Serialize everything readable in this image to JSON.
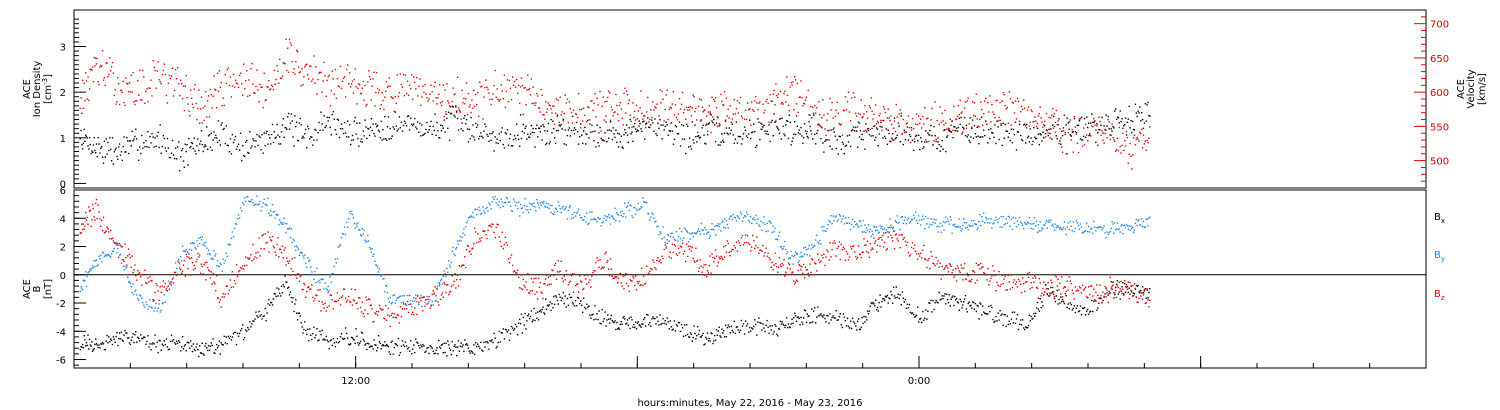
{
  "chart_data": [
    {
      "type": "scatter",
      "panel": "top",
      "ylabel_lines": [
        "ACE",
        "Ion Density"
      ],
      "ylabel_unit": "[cm",
      "ylabel_unit_sup": "-3",
      "ylabel_unit_end": "]",
      "ylim": [
        -0.1,
        3.8
      ],
      "yticks": [
        0,
        1,
        2,
        3
      ],
      "y2label_lines": [
        "ACE",
        "Velocity"
      ],
      "y2label_unit": "[km/s]",
      "y2lim": [
        460,
        720
      ],
      "y2ticks": [
        500,
        550,
        600,
        650,
        700
      ],
      "xlim": [
        0,
        48
      ],
      "series": [
        {
          "color": "#000000",
          "x": [
            0.2,
            0.8,
            1.5,
            2.2,
            3.0,
            3.8,
            4.5,
            5.2,
            6.0,
            6.8,
            7.5,
            8.2,
            9.0,
            9.8,
            10.5,
            11.2,
            12.0,
            12.8,
            13.5,
            14.2,
            15.0,
            15.8,
            16.5,
            17.2,
            18.0,
            18.8,
            19.5,
            20.2,
            21.0,
            21.8,
            22.5,
            23.2,
            24.0,
            24.8,
            25.5,
            26.2,
            27.0,
            27.8,
            28.5,
            29.2,
            30.0,
            30.8,
            31.5,
            32.2,
            33.0,
            33.8,
            34.5,
            35.2,
            36.0,
            36.8,
            37.5,
            38.2
          ],
          "y": [
            1.0,
            0.8,
            0.7,
            0.9,
            1.0,
            0.6,
            0.9,
            1.1,
            0.8,
            1.0,
            1.3,
            1.0,
            1.4,
            1.1,
            1.2,
            1.3,
            1.3,
            1.2,
            1.4,
            1.2,
            1.0,
            1.2,
            1.1,
            1.2,
            1.2,
            1.1,
            1.1,
            1.2,
            1.3,
            1.0,
            1.2,
            1.1,
            1.1,
            1.3,
            1.2,
            1.2,
            0.9,
            1.1,
            1.1,
            1.2,
            1.0,
            1.0,
            1.2,
            1.1,
            1.2,
            1.0,
            1.1,
            1.3,
            1.2,
            1.3,
            1.4,
            1.6
          ]
        },
        {
          "color": "#e00000",
          "x": [
            0.2,
            0.8,
            1.5,
            2.2,
            3.0,
            3.8,
            4.5,
            5.2,
            6.0,
            6.8,
            7.5,
            8.2,
            9.0,
            9.8,
            10.5,
            11.2,
            12.0,
            12.8,
            13.5,
            14.2,
            15.0,
            15.8,
            16.5,
            17.2,
            18.0,
            18.8,
            19.5,
            20.2,
            21.0,
            21.8,
            22.5,
            23.2,
            24.0,
            24.8,
            25.5,
            26.2,
            27.0,
            27.8,
            28.5,
            29.2,
            30.0,
            30.8,
            31.5,
            32.2,
            33.0,
            33.8,
            34.5,
            35.2,
            36.0,
            36.8,
            37.5,
            38.2
          ],
          "y": [
            590,
            640,
            610,
            600,
            625,
            605,
            575,
            610,
            620,
            595,
            660,
            630,
            612,
            620,
            606,
            600,
            602,
            590,
            590,
            586,
            602,
            598,
            588,
            578,
            568,
            578,
            575,
            580,
            588,
            578,
            568,
            580,
            572,
            578,
            595,
            570,
            560,
            578,
            568,
            560,
            555,
            552,
            560,
            568,
            585,
            560,
            556,
            540,
            545,
            535,
            520,
            540
          ]
        }
      ]
    },
    {
      "type": "scatter",
      "panel": "bottom",
      "ylabel_lines": [
        "ACE",
        "B"
      ],
      "ylabel_unit": "[nT]",
      "ylim": [
        -6.6,
        6.0
      ],
      "yticks": [
        -6,
        -4,
        -2,
        0,
        2,
        4,
        6
      ],
      "xlim": [
        0,
        48
      ],
      "xticks": [
        10,
        20,
        30,
        40
      ],
      "xticklabels": [
        "12:00",
        "",
        "0:00",
        ""
      ],
      "xlabel": "hours:minutes, May 22, 2016 - May 23, 2016",
      "series": [
        {
          "name": "B",
          "sub": "x",
          "color": "#000000",
          "x": [
            0.2,
            0.8,
            1.5,
            2.2,
            3.0,
            3.8,
            4.5,
            5.2,
            6.0,
            6.8,
            7.5,
            8.2,
            9.0,
            9.8,
            10.5,
            11.2,
            12.0,
            12.8,
            13.5,
            14.2,
            15.0,
            15.8,
            16.5,
            17.2,
            18.0,
            18.8,
            19.5,
            20.2,
            21.0,
            21.8,
            22.5,
            23.2,
            24.0,
            24.8,
            25.5,
            26.2,
            27.0,
            27.8,
            28.5,
            29.2,
            30.0,
            30.8,
            31.5,
            32.2,
            33.0,
            33.8,
            34.5,
            35.2,
            36.0,
            36.8,
            37.5,
            38.2
          ],
          "y": [
            -4.8,
            -5.0,
            -4.5,
            -4.2,
            -5.0,
            -4.8,
            -5.2,
            -5.0,
            -4.0,
            -2.5,
            -0.5,
            -4.0,
            -4.6,
            -4.3,
            -4.8,
            -5.0,
            -5.1,
            -5.2,
            -5.0,
            -5.3,
            -4.5,
            -3.5,
            -2.5,
            -1.5,
            -2.0,
            -3.0,
            -3.5,
            -3.4,
            -3.3,
            -4.0,
            -4.5,
            -3.8,
            -3.5,
            -3.8,
            -3.2,
            -2.8,
            -3.0,
            -3.5,
            -2.0,
            -1.2,
            -3.0,
            -1.5,
            -2.0,
            -2.5,
            -3.0,
            -3.5,
            -1.2,
            -2.0,
            -2.5,
            -1.0,
            -1.0,
            -1.5
          ]
        },
        {
          "name": "B",
          "sub": "y",
          "color": "#1e88e5",
          "x": [
            0.2,
            0.8,
            1.5,
            2.2,
            3.0,
            3.8,
            4.5,
            5.2,
            6.0,
            6.8,
            7.5,
            8.2,
            9.0,
            9.8,
            10.5,
            11.2,
            12.0,
            12.8,
            13.5,
            14.2,
            15.0,
            15.8,
            16.5,
            17.2,
            18.0,
            18.8,
            19.5,
            20.2,
            21.0,
            21.8,
            22.5,
            23.2,
            24.0,
            24.8,
            25.5,
            26.2,
            27.0,
            27.8,
            28.5,
            29.2,
            30.0,
            30.8,
            31.5,
            32.2,
            33.0,
            33.8,
            34.5,
            35.2,
            36.0,
            36.8,
            37.5,
            38.2
          ],
          "y": [
            -1.0,
            1.2,
            2.0,
            -1.5,
            -2.5,
            1.5,
            2.5,
            0.5,
            5.2,
            5.0,
            3.5,
            1.0,
            -1.0,
            4.5,
            2.0,
            -1.5,
            -1.8,
            -1.5,
            1.8,
            4.5,
            5.2,
            4.8,
            5.0,
            4.8,
            4.2,
            3.8,
            4.5,
            5.0,
            2.5,
            3.0,
            3.2,
            3.8,
            4.2,
            3.2,
            1.2,
            2.0,
            4.2,
            3.5,
            3.2,
            3.8,
            4.0,
            3.6,
            3.5,
            3.8,
            3.8,
            3.7,
            3.5,
            3.4,
            3.2,
            3.3,
            3.5,
            4.0
          ]
        },
        {
          "name": "B",
          "sub": "z",
          "color": "#e00000",
          "x": [
            0.2,
            0.8,
            1.5,
            2.2,
            3.0,
            3.8,
            4.5,
            5.2,
            6.0,
            6.8,
            7.5,
            8.2,
            9.0,
            9.8,
            10.5,
            11.2,
            12.0,
            12.8,
            13.5,
            14.2,
            15.0,
            15.8,
            16.5,
            17.2,
            18.0,
            18.8,
            19.5,
            20.2,
            21.0,
            21.8,
            22.5,
            23.2,
            24.0,
            24.8,
            25.5,
            26.2,
            27.0,
            27.8,
            28.5,
            29.2,
            30.0,
            30.8,
            31.5,
            32.2,
            33.0,
            33.8,
            34.5,
            35.2,
            36.0,
            36.8,
            37.5,
            38.2
          ],
          "y": [
            3.5,
            4.5,
            2.0,
            0.5,
            -1.5,
            0.5,
            1.0,
            -1.5,
            1.0,
            2.5,
            1.5,
            -1.0,
            -2.0,
            -1.5,
            -2.5,
            -3.0,
            -2.0,
            -1.5,
            -0.5,
            2.5,
            3.5,
            -0.5,
            -1.0,
            0.5,
            -1.0,
            1.0,
            -0.5,
            -0.3,
            2.0,
            1.5,
            0.5,
            2.0,
            2.5,
            1.0,
            0.0,
            0.5,
            2.0,
            1.5,
            2.5,
            2.8,
            1.5,
            0.5,
            0.0,
            0.3,
            -0.5,
            -0.5,
            -1.0,
            -0.8,
            -1.2,
            -1.0,
            -0.8,
            -1.5
          ]
        }
      ]
    }
  ]
}
